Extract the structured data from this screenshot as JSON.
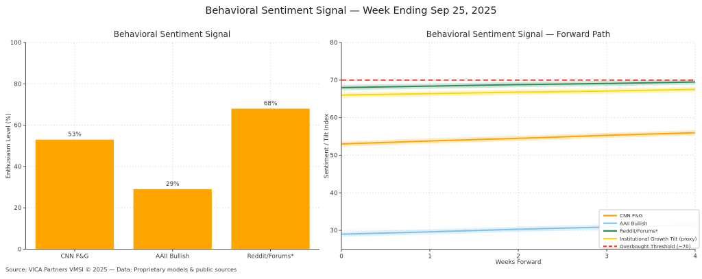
{
  "figure": {
    "title": "Behavioral Sentiment Signal — Week Ending Sep 25, 2025",
    "source": "Source: VICA Partners VMSI © 2025 — Data: Proprietary models & public sources",
    "background": "#ffffff"
  },
  "colors": {
    "grid": "#dcdcdc",
    "axis": "#4d4d4d",
    "tick_text": "#3d3d3d",
    "bar_orange": "#FFA500",
    "line_blue": "#7EC0EA",
    "line_green": "#2E8B57",
    "line_gold": "#FFD700",
    "line_red": "#EF3B2C"
  },
  "chart_data": [
    {
      "type": "bar",
      "title": "Behavioral Sentiment Signal",
      "xlabel": "",
      "ylabel": "Enthusiasm Level (%)",
      "categories": [
        "CNN F&G",
        "AAII Bullish",
        "Reddit/Forums*"
      ],
      "values": [
        53,
        29,
        68
      ],
      "bar_labels": [
        "53%",
        "29%",
        "68%"
      ],
      "bar_color": "#FFA500",
      "ylim": [
        0,
        100
      ],
      "yticks": [
        0,
        20,
        40,
        60,
        80,
        100
      ],
      "grid": true
    },
    {
      "type": "line",
      "title": "Behavioral Sentiment Signal — Forward Path",
      "xlabel": "Weeks Forward",
      "ylabel": "Sentiment / Tilt Index",
      "x": [
        0,
        1,
        2,
        3,
        4
      ],
      "xticks": [
        0,
        1,
        2,
        3,
        4
      ],
      "ylim": [
        25,
        80
      ],
      "yticks": [
        30,
        40,
        50,
        60,
        70,
        80
      ],
      "grid": true,
      "legend_position": "lower right",
      "series": [
        {
          "name": "CNN F&G",
          "color": "#FFA500",
          "style": "solid",
          "band": true,
          "values": [
            53,
            53.8,
            54.5,
            55.3,
            56
          ]
        },
        {
          "name": "AAII Bullish",
          "color": "#7EC0EA",
          "style": "solid",
          "band": true,
          "values": [
            29,
            29.6,
            30.3,
            30.9,
            31.5
          ]
        },
        {
          "name": "Reddit/Forums*",
          "color": "#2E8B57",
          "style": "solid",
          "band": true,
          "values": [
            68,
            68.4,
            68.8,
            69.1,
            69.5
          ]
        },
        {
          "name": "Institutional Growth Tilt (proxy)",
          "color": "#FFD700",
          "style": "solid",
          "band": true,
          "values": [
            66,
            66.4,
            66.8,
            67.1,
            67.5
          ]
        },
        {
          "name": "Overbought Threshold (~70)",
          "color": "#EF3B2C",
          "style": "dashed",
          "band": false,
          "values": [
            70,
            70,
            70,
            70,
            70
          ]
        }
      ]
    }
  ]
}
